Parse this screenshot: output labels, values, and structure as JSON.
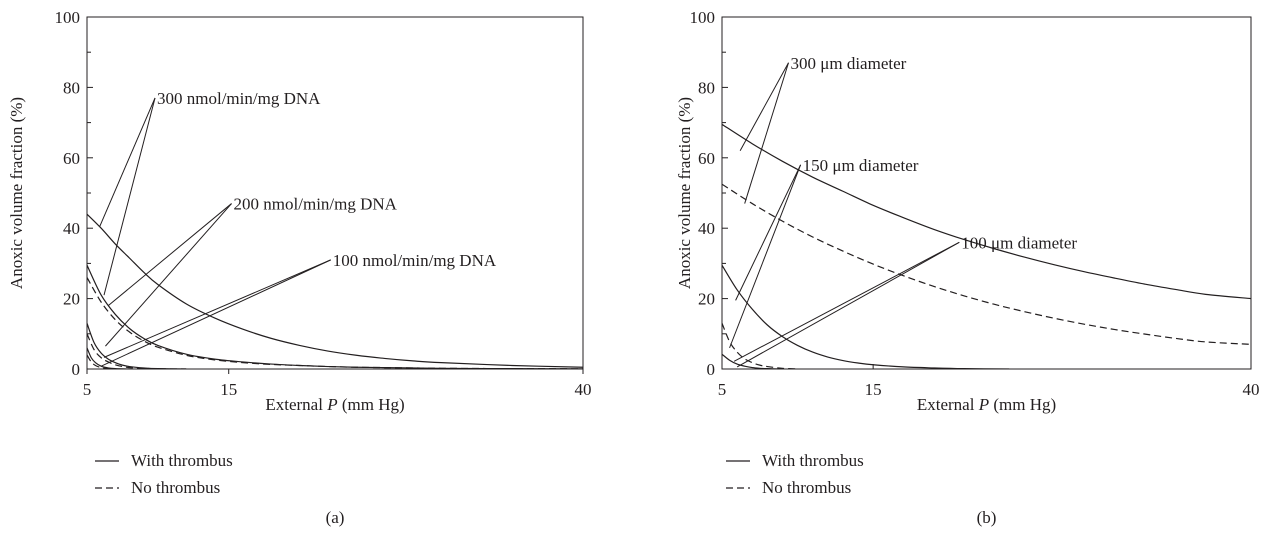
{
  "chart_data": [
    {
      "panel_label": "(a)",
      "type": "line",
      "xlabel_prefix": "External ",
      "xlabel_var": "P",
      "xlabel_suffix": " (mm Hg)",
      "ylabel": "Anoxic volume fraction (%)",
      "xlim": [
        5,
        40
      ],
      "ylim": [
        0,
        100
      ],
      "xticks": [
        5,
        15,
        40
      ],
      "yticks": [
        0,
        20,
        40,
        60,
        80,
        100
      ],
      "grid": false,
      "series": [
        {
          "style": "solid",
          "x": [
            5,
            6,
            7,
            8,
            9,
            10,
            12,
            14,
            16,
            18,
            20,
            22,
            24,
            26,
            28,
            30,
            35,
            40
          ],
          "y": [
            44,
            40,
            35.5,
            31.5,
            27.5,
            24,
            18.5,
            14.5,
            11.3,
            8.7,
            6.7,
            5.1,
            3.9,
            3.0,
            2.3,
            1.8,
            1.0,
            0.5
          ]
        },
        {
          "style": "dashed",
          "x": [
            5,
            6,
            7,
            8,
            9,
            10,
            12,
            14,
            16,
            18,
            20,
            22,
            24,
            26,
            28,
            30,
            35,
            40
          ],
          "y": [
            26,
            19,
            14,
            10.5,
            8,
            6.2,
            3.9,
            2.6,
            1.8,
            1.3,
            1.0,
            0.7,
            0.5,
            0.4,
            0.3,
            0.2,
            0.1,
            0.05
          ]
        },
        {
          "style": "solid",
          "x": [
            5,
            6,
            7,
            8,
            9,
            10,
            12,
            14,
            16,
            18,
            20,
            22,
            24,
            26,
            28,
            30,
            35,
            40
          ],
          "y": [
            29.5,
            21,
            15.5,
            11.5,
            8.7,
            6.7,
            4.2,
            2.8,
            2.0,
            1.4,
            1.0,
            0.7,
            0.5,
            0.4,
            0.3,
            0.2,
            0.1,
            0.05
          ]
        },
        {
          "style": "solid",
          "x": [
            5,
            5.5,
            6,
            6.5,
            7,
            7.5,
            8,
            9,
            10,
            12
          ],
          "y": [
            13,
            7.5,
            4.5,
            2.8,
            1.8,
            1.1,
            0.7,
            0.3,
            0.1,
            0
          ]
        },
        {
          "style": "dashed",
          "x": [
            5,
            5.5,
            6,
            6.5,
            7,
            7.5,
            8,
            9,
            10,
            12
          ],
          "y": [
            10,
            5.5,
            3.2,
            2.0,
            1.2,
            0.7,
            0.4,
            0.2,
            0.05,
            0
          ]
        },
        {
          "style": "solid",
          "x": [
            5,
            5.3,
            5.6,
            6,
            6.5,
            7,
            8
          ],
          "y": [
            6,
            3.2,
            1.8,
            0.8,
            0.3,
            0.1,
            0
          ]
        },
        {
          "style": "dashed",
          "x": [
            5,
            5.3,
            5.6,
            6,
            6.5,
            7
          ],
          "y": [
            4,
            2.0,
            1.0,
            0.4,
            0.1,
            0
          ]
        }
      ],
      "annotations": [
        {
          "text": "300 nmol/min/mg DNA",
          "anchor": [
            9.8,
            77
          ],
          "targets": [
            [
              5.9,
              40.5
            ],
            [
              6.2,
              21
            ]
          ]
        },
        {
          "text": "200 nmol/min/mg DNA",
          "anchor": [
            15.2,
            47
          ],
          "targets": [
            [
              6.5,
              18
            ],
            [
              6.3,
              6.5
            ]
          ]
        },
        {
          "text": "100 nmol/min/mg DNA",
          "anchor": [
            22.2,
            31
          ],
          "targets": [
            [
              6.2,
              3.3
            ],
            [
              6.0,
              0.8
            ]
          ]
        }
      ],
      "legend": [
        {
          "style": "solid",
          "label": "With thrombus"
        },
        {
          "style": "dashed",
          "label": "No thrombus"
        }
      ]
    },
    {
      "panel_label": "(b)",
      "type": "line",
      "xlabel_prefix": "External ",
      "xlabel_var": "P",
      "xlabel_suffix": " (mm Hg)",
      "ylabel": "Anoxic volume fraction (%)",
      "xlim": [
        5,
        40
      ],
      "ylim": [
        0,
        100
      ],
      "xticks": [
        5,
        15,
        40
      ],
      "yticks": [
        0,
        20,
        40,
        60,
        80,
        100
      ],
      "grid": false,
      "series": [
        {
          "style": "solid",
          "x": [
            5,
            7,
            9,
            11,
            13,
            15,
            17,
            19,
            21,
            23,
            25,
            27,
            29,
            31,
            33,
            35,
            37,
            40
          ],
          "y": [
            69.5,
            64,
            59,
            54.5,
            50.5,
            46.5,
            43,
            39.7,
            36.8,
            34.2,
            31.8,
            29.6,
            27.6,
            25.8,
            24.1,
            22.6,
            21.2,
            20
          ]
        },
        {
          "style": "dashed",
          "x": [
            5,
            7,
            9,
            11,
            13,
            15,
            17,
            19,
            21,
            23,
            25,
            27,
            29,
            31,
            33,
            35,
            37,
            40
          ],
          "y": [
            52.5,
            47,
            42,
            37.5,
            33.5,
            29.8,
            26.5,
            23.5,
            20.8,
            18.4,
            16.3,
            14.4,
            12.7,
            11.2,
            9.9,
            8.7,
            7.7,
            7
          ]
        },
        {
          "style": "solid",
          "x": [
            5,
            6,
            7,
            8,
            9,
            10,
            11,
            12,
            13,
            14,
            15,
            17,
            19,
            21,
            24
          ],
          "y": [
            29.5,
            22.5,
            17,
            12.5,
            9.2,
            6.7,
            4.8,
            3.4,
            2.4,
            1.7,
            1.2,
            0.6,
            0.3,
            0.1,
            0
          ]
        },
        {
          "style": "dashed",
          "x": [
            5,
            5.5,
            6,
            6.5,
            7,
            7.5,
            8,
            9,
            10
          ],
          "y": [
            13,
            7.8,
            4.8,
            2.9,
            1.8,
            1.1,
            0.7,
            0.2,
            0
          ]
        },
        {
          "style": "solid",
          "x": [
            5,
            5.5,
            6,
            6.5,
            7,
            7.5,
            8,
            9
          ],
          "y": [
            4.2,
            2.5,
            1.4,
            0.8,
            0.4,
            0.2,
            0.1,
            0
          ]
        }
      ],
      "annotations": [
        {
          "text": "300 μm diameter",
          "anchor": [
            9.4,
            87
          ],
          "targets": [
            [
              6.2,
              62
            ],
            [
              6.5,
              47
            ]
          ]
        },
        {
          "text": "150 μm diameter",
          "anchor": [
            10.2,
            58
          ],
          "targets": [
            [
              5.9,
              19.5
            ],
            [
              5.5,
              6
            ]
          ]
        },
        {
          "text": "100 μm diameter",
          "anchor": [
            20.7,
            36
          ],
          "targets": [
            [
              5.8,
              2.2
            ],
            [
              6.0,
              0.6
            ]
          ]
        }
      ],
      "legend": [
        {
          "style": "solid",
          "label": "With thrombus"
        },
        {
          "style": "dashed",
          "label": "No thrombus"
        }
      ]
    }
  ]
}
